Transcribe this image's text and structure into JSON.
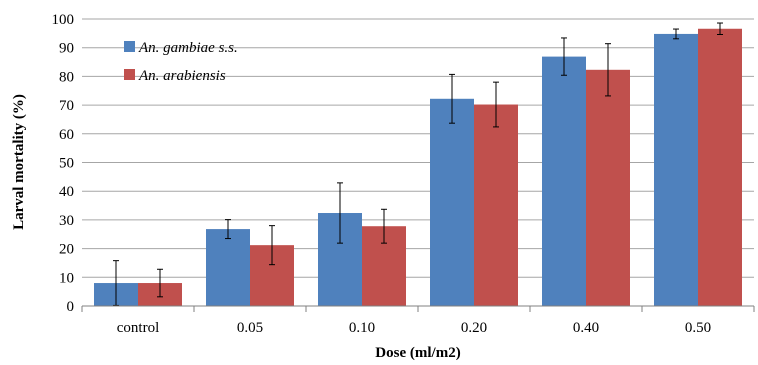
{
  "chart_data": {
    "type": "bar",
    "title": "",
    "xlabel": "Dose (ml/m2)",
    "ylabel": "Larval mortality (%)",
    "ylim": [
      0,
      100
    ],
    "yticks": [
      0,
      10,
      20,
      30,
      40,
      50,
      60,
      70,
      80,
      90,
      100
    ],
    "grid": "horizontal",
    "legend_position": "top-left",
    "categories": [
      "control",
      "0.05",
      "0.10",
      "0.20",
      "0.40",
      "0.50"
    ],
    "series": [
      {
        "name": "An. gambiae s.s.",
        "color": "#4f81bd",
        "values": [
          8,
          26.8,
          32.4,
          72.2,
          86.9,
          94.8
        ],
        "error": [
          7.8,
          3.3,
          10.5,
          8.5,
          6.5,
          1.7
        ]
      },
      {
        "name": "An. arabiensis",
        "color": "#c0504d",
        "values": [
          8,
          21.2,
          27.8,
          70.2,
          82.3,
          96.6
        ],
        "error": [
          4.8,
          6.8,
          5.9,
          7.8,
          9.1,
          2
        ]
      }
    ]
  }
}
